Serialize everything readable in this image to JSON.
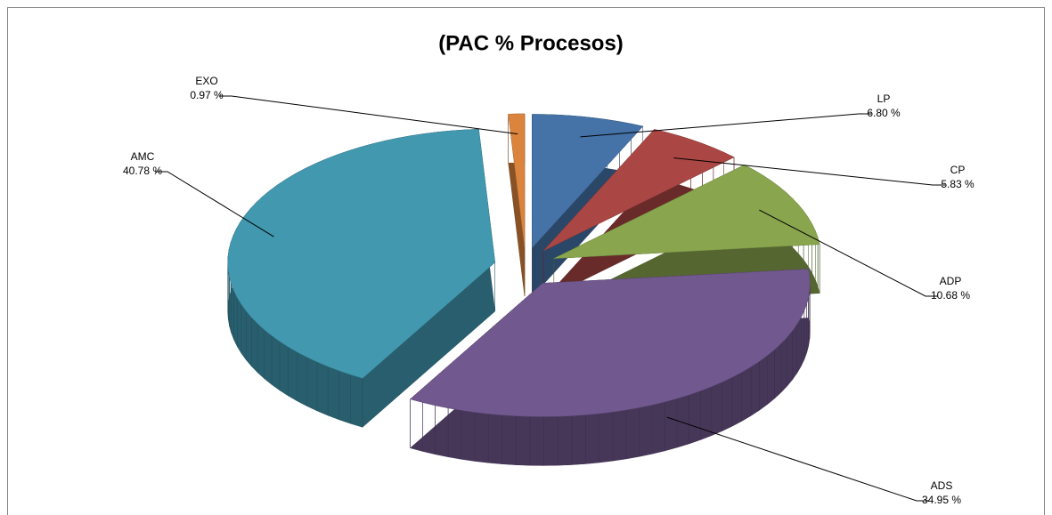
{
  "chart_data": {
    "type": "pie3d",
    "title": "(PAC % Procesos)",
    "categories": [
      "LP",
      "CP",
      "ADP",
      "ADS",
      "AMC",
      "EXO"
    ],
    "values": [
      6.8,
      5.83,
      10.68,
      34.95,
      40.78,
      0.97
    ],
    "value_labels": [
      "6.80 %",
      "5.83 %",
      "10.68 %",
      "34.95 %",
      "40.78 %",
      "0.97 %"
    ],
    "colors": [
      "#4572a7",
      "#aa4643",
      "#89a54e",
      "#71588f",
      "#4198af",
      "#db843d"
    ]
  }
}
